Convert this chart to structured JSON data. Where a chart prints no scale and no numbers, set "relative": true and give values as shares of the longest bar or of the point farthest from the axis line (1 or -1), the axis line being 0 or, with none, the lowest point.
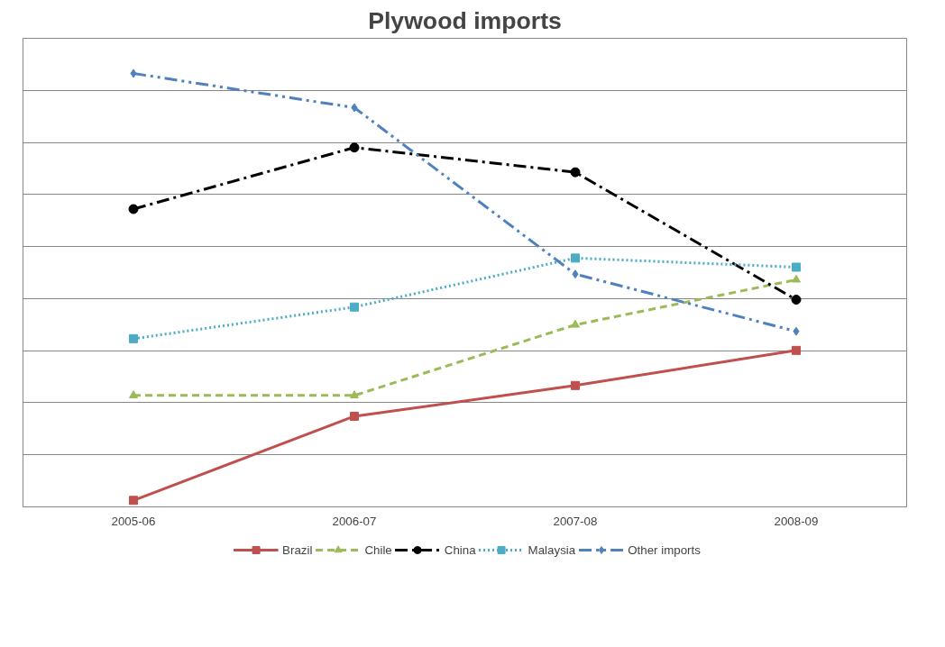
{
  "chart_data": {
    "type": "line",
    "title": "Plywood imports",
    "relative": true,
    "grid": "y",
    "legend": "bottom",
    "categories": [
      "2005-06",
      "2006-07",
      "2007-08",
      "2008-09"
    ],
    "series": [
      {
        "name": "Brazil",
        "color": "#c0504d",
        "marker": "square",
        "line_style": "solid",
        "values": [
          0.015,
          0.209,
          0.28,
          0.361
        ]
      },
      {
        "name": "Chile",
        "color": "#9bbb59",
        "marker": "triangle",
        "line_style": "dashed",
        "values": [
          0.257,
          0.257,
          0.42,
          0.524
        ]
      },
      {
        "name": "China",
        "color": "#000000",
        "marker": "circle",
        "line_style": "dashdot",
        "values": [
          0.687,
          0.829,
          0.772,
          0.478
        ]
      },
      {
        "name": "Malaysia",
        "color": "#4bacc6",
        "marker": "square",
        "line_style": "dotted",
        "values": [
          0.388,
          0.461,
          0.574,
          0.553
        ]
      },
      {
        "name": "Other imports",
        "color": "#4f81bd",
        "marker": "diamond",
        "line_style": "dashdotdot",
        "values": [
          1,
          0.921,
          0.537,
          0.405
        ]
      }
    ]
  }
}
